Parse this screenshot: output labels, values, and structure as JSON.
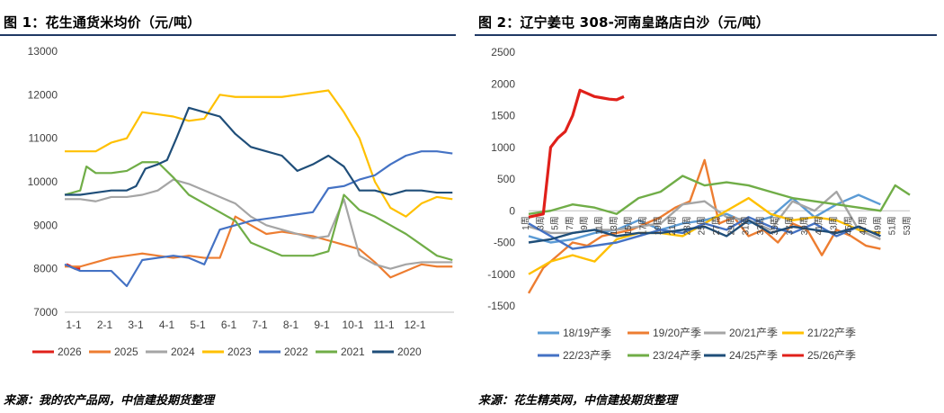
{
  "left": {
    "title": "图 1：花生通货米均价（元/吨）",
    "source": "来源：我的农产品网，中信建投期货整理",
    "chart_data": {
      "type": "line",
      "title": "花生通货米均价（元/吨）",
      "xlabel": "",
      "ylabel": "元/吨",
      "ylim": [
        7000,
        13000
      ],
      "yticks": [
        7000,
        8000,
        9000,
        10000,
        11000,
        12000,
        13000
      ],
      "xlim": [
        0,
        12
      ],
      "xtick_labels": [
        "1-1",
        "2-1",
        "3-1",
        "4-1",
        "5-1",
        "6-1",
        "7-1",
        "8-1",
        "9-1",
        "10-1",
        "11-1",
        "12-1"
      ],
      "legend_position": "bottom",
      "series": [
        {
          "name": "2026",
          "color": "#e0201a",
          "x": [
            0.05,
            0.2,
            0.35,
            0.5
          ],
          "y": [
            8100,
            8050,
            8000,
            8000
          ]
        },
        {
          "name": "2025",
          "color": "#ed7d31",
          "x": [
            0,
            0.5,
            1,
            1.5,
            2,
            2.5,
            3,
            3.5,
            4,
            4.5,
            5,
            5.5,
            6,
            6.5,
            7,
            7.5,
            8,
            8.5,
            9,
            9.5,
            10,
            10.5,
            11,
            11.5,
            12,
            12.5
          ],
          "y": [
            8050,
            8050,
            8150,
            8250,
            8300,
            8350,
            8300,
            8250,
            8300,
            8250,
            8250,
            9200,
            9000,
            8800,
            8850,
            8800,
            8750,
            8650,
            8550,
            8450,
            8150,
            7800,
            7950,
            8100,
            8050,
            8050
          ]
        },
        {
          "name": "2024",
          "color": "#a5a5a5",
          "x": [
            0,
            0.5,
            1,
            1.5,
            2,
            2.5,
            3,
            3.5,
            4,
            4.5,
            5,
            5.5,
            6,
            6.5,
            7,
            7.5,
            8,
            8.5,
            9,
            9.5,
            10,
            10.5,
            11,
            11.5,
            12,
            12.5
          ],
          "y": [
            9600,
            9600,
            9550,
            9650,
            9650,
            9700,
            9800,
            10050,
            9950,
            9800,
            9650,
            9500,
            9200,
            9000,
            8900,
            8800,
            8700,
            8750,
            9600,
            8300,
            8100,
            8000,
            8100,
            8150,
            8150,
            8150
          ]
        },
        {
          "name": "2023",
          "color": "#ffc000",
          "x": [
            0,
            0.5,
            1,
            1.5,
            2,
            2.5,
            3,
            3.5,
            4,
            4.5,
            5,
            5.5,
            6,
            6.5,
            7,
            7.5,
            8,
            8.5,
            9,
            9.5,
            10,
            10.5,
            11,
            11.5,
            12,
            12.5
          ],
          "y": [
            10700,
            10700,
            10700,
            10900,
            11000,
            11600,
            11550,
            11500,
            11400,
            11450,
            12000,
            11950,
            11950,
            11950,
            11950,
            12000,
            12050,
            12100,
            11600,
            11000,
            10000,
            9400,
            9200,
            9500,
            9650,
            9600
          ]
        },
        {
          "name": "2022",
          "color": "#4472c4",
          "x": [
            0,
            0.5,
            1,
            1.5,
            2,
            2.5,
            3,
            3.5,
            4,
            4.5,
            5,
            5.5,
            6,
            6.5,
            7,
            7.5,
            8,
            8.5,
            9,
            9.5,
            10,
            10.5,
            11,
            11.5,
            12,
            12.5
          ],
          "y": [
            8100,
            7950,
            7950,
            7950,
            7600,
            8200,
            8250,
            8300,
            8250,
            8100,
            8900,
            9000,
            9100,
            9150,
            9200,
            9250,
            9300,
            9850,
            9900,
            10050,
            10150,
            10400,
            10600,
            10700,
            10700,
            10650
          ]
        },
        {
          "name": "2021",
          "color": "#70ad47",
          "x": [
            0,
            0.5,
            0.7,
            1,
            1.5,
            2,
            2.5,
            3,
            3.5,
            4,
            4.5,
            5,
            5.5,
            6,
            6.5,
            7,
            7.5,
            8,
            8.5,
            9,
            9.5,
            10,
            10.5,
            11,
            11.5,
            12,
            12.5
          ],
          "y": [
            9700,
            9800,
            10350,
            10200,
            10200,
            10250,
            10450,
            10450,
            10100,
            9700,
            9500,
            9300,
            9100,
            8600,
            8450,
            8300,
            8300,
            8300,
            8400,
            9700,
            9350,
            9200,
            9000,
            8800,
            8550,
            8300,
            8200
          ]
        },
        {
          "name": "2020",
          "color": "#1f4e79",
          "x": [
            0,
            0.5,
            1,
            1.5,
            2,
            2.3,
            2.6,
            3,
            3.3,
            3.6,
            4,
            4.5,
            5,
            5.5,
            6,
            6.5,
            7,
            7.5,
            8,
            8.5,
            9,
            9.5,
            10,
            10.5,
            11,
            11.5,
            12,
            12.5
          ],
          "y": [
            9700,
            9700,
            9750,
            9800,
            9800,
            9900,
            10300,
            10400,
            10500,
            11000,
            11700,
            11600,
            11500,
            11100,
            10800,
            10700,
            10600,
            10250,
            10400,
            10600,
            10350,
            9800,
            9800,
            9700,
            9800,
            9800,
            9750,
            9750
          ]
        }
      ]
    }
  },
  "right": {
    "title": "图 2：辽宁姜屯 308-河南皇路店白沙（元/吨）",
    "source": "来源：花生精英网，中信建投期货整理",
    "chart_data": {
      "type": "line",
      "title": "辽宁姜屯 308-河南皇路店白沙（元/吨）",
      "xlabel": "",
      "ylabel": "元/吨",
      "ylim": [
        -1500,
        2500
      ],
      "yticks": [
        -1500,
        -1000,
        -500,
        0,
        500,
        1000,
        1500,
        2000,
        2500
      ],
      "xlim": [
        1,
        53
      ],
      "xtick_labels": [
        "1周",
        "3周",
        "5周",
        "7周",
        "9周",
        "11周",
        "13周",
        "15周",
        "17周",
        "19周",
        "21周",
        "23周",
        "25周",
        "27周",
        "29周",
        "31周",
        "33周",
        "35周",
        "37周",
        "39周",
        "41周",
        "43周",
        "45周",
        "47周",
        "49周",
        "51周",
        "53周"
      ],
      "legend_position": "bottom",
      "series": [
        {
          "name": "18/19产季",
          "color": "#5b9bd5",
          "x": [
            1,
            4,
            7,
            10,
            13,
            16,
            19,
            22,
            25,
            28,
            31,
            34,
            37,
            40,
            43,
            46,
            49
          ],
          "y": [
            -400,
            -500,
            -450,
            -350,
            -300,
            -150,
            -300,
            -200,
            -150,
            -50,
            -200,
            -100,
            200,
            -100,
            100,
            250,
            100
          ]
        },
        {
          "name": "19/20产季",
          "color": "#ed7d31",
          "x": [
            1,
            3,
            5,
            7,
            9,
            11,
            13,
            15,
            17,
            19,
            21,
            23,
            25,
            27,
            29,
            31,
            33,
            35,
            37,
            39,
            41,
            43,
            45,
            47,
            49
          ],
          "y": [
            -1300,
            -900,
            -700,
            -500,
            -550,
            -400,
            -350,
            -300,
            -200,
            -100,
            50,
            150,
            800,
            -200,
            -100,
            -400,
            -300,
            -500,
            -200,
            -300,
            -700,
            -300,
            -400,
            -550,
            -600
          ]
        },
        {
          "name": "20/21产季",
          "color": "#a5a5a5",
          "x": [
            1,
            4,
            7,
            10,
            13,
            16,
            19,
            22,
            25,
            28,
            31,
            34,
            37,
            40,
            43,
            46,
            49
          ],
          "y": [
            -250,
            -350,
            -350,
            -300,
            -300,
            -250,
            -200,
            100,
            150,
            -100,
            -150,
            -300,
            150,
            0,
            300,
            -300,
            -450
          ]
        },
        {
          "name": "21/22产季",
          "color": "#ffc000",
          "x": [
            1,
            4,
            7,
            10,
            13,
            16,
            19,
            22,
            25,
            28,
            31,
            34,
            37,
            40,
            43,
            46,
            49
          ],
          "y": [
            -1000,
            -800,
            -700,
            -800,
            -450,
            -350,
            -350,
            -400,
            -200,
            0,
            200,
            -50,
            -150,
            -100,
            -150,
            -300,
            -350
          ]
        },
        {
          "name": "22/23产季",
          "color": "#4472c4",
          "x": [
            1,
            4,
            7,
            10,
            13,
            16,
            19,
            22,
            25,
            28,
            31,
            34,
            37,
            40,
            43,
            46,
            49
          ],
          "y": [
            -200,
            -400,
            -600,
            -550,
            -500,
            -400,
            -300,
            -350,
            -200,
            -300,
            -100,
            -250,
            -350,
            -200,
            -400,
            -250,
            -400
          ]
        },
        {
          "name": "23/24产季",
          "color": "#70ad47",
          "x": [
            1,
            4,
            7,
            10,
            13,
            16,
            19,
            22,
            25,
            28,
            31,
            34,
            37,
            40,
            43,
            46,
            49,
            51,
            53
          ],
          "y": [
            -50,
            0,
            100,
            50,
            -50,
            200,
            300,
            550,
            400,
            450,
            400,
            300,
            200,
            150,
            100,
            50,
            0,
            400,
            250
          ]
        },
        {
          "name": "24/25产季",
          "color": "#1f4e79",
          "x": [
            1,
            4,
            7,
            10,
            13,
            16,
            19,
            22,
            25,
            28,
            31,
            34,
            37,
            40,
            43,
            46,
            49
          ],
          "y": [
            -500,
            -450,
            -350,
            -300,
            -400,
            -350,
            -350,
            -300,
            -250,
            -400,
            -150,
            -350,
            -250,
            -300,
            -350,
            -250,
            -400
          ]
        },
        {
          "name": "25/26产季",
          "color": "#e0201a",
          "x": [
            1,
            3,
            4,
            5,
            6,
            7,
            8,
            9,
            10,
            11,
            12,
            13,
            14
          ],
          "y": [
            -100,
            -50,
            1000,
            1150,
            1250,
            1500,
            1900,
            1850,
            1800,
            1780,
            1760,
            1750,
            1800
          ]
        }
      ]
    }
  }
}
